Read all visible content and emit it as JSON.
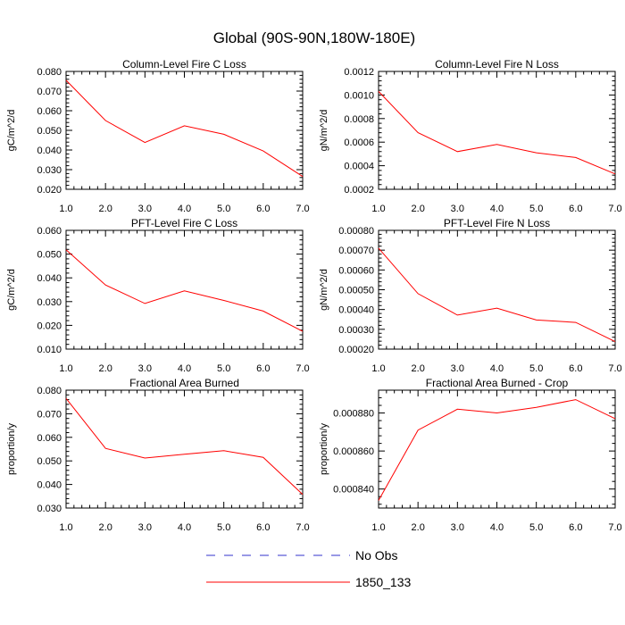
{
  "title": "Global (90S-90N,180W-180E)",
  "chart_data": [
    {
      "type": "line",
      "title": "Column-Level Fire C Loss",
      "ylabel": "gC/m^2/d",
      "x": [
        1,
        2,
        3,
        4,
        5,
        6,
        7
      ],
      "xticks": [
        "1.0",
        "2.0",
        "3.0",
        "4.0",
        "5.0",
        "6.0",
        "7.0"
      ],
      "xlim": [
        1,
        7
      ],
      "ylim": [
        0.02,
        0.08
      ],
      "yticks": [
        0.02,
        0.03,
        0.04,
        0.05,
        0.06,
        0.07,
        0.08
      ],
      "yticklabels": [
        "0.020",
        "0.030",
        "0.040",
        "0.050",
        "0.060",
        "0.070",
        "0.080"
      ],
      "series": [
        {
          "name": "1850_133",
          "values": [
            0.0755,
            0.055,
            0.0438,
            0.0523,
            0.048,
            0.0395,
            0.0265
          ]
        }
      ]
    },
    {
      "type": "line",
      "title": "Column-Level Fire N Loss",
      "ylabel": "gN/m^2/d",
      "x": [
        1,
        2,
        3,
        4,
        5,
        6,
        7
      ],
      "xticks": [
        "1.0",
        "2.0",
        "3.0",
        "4.0",
        "5.0",
        "6.0",
        "7.0"
      ],
      "xlim": [
        1,
        7
      ],
      "ylim": [
        0.0002,
        0.0012
      ],
      "yticks": [
        0.0002,
        0.0004,
        0.0006,
        0.0008,
        0.001,
        0.0012
      ],
      "yticklabels": [
        "0.0002",
        "0.0004",
        "0.0006",
        "0.0008",
        "0.0010",
        "0.0012"
      ],
      "series": [
        {
          "name": "1850_133",
          "values": [
            0.00103,
            0.00068,
            0.00052,
            0.00058,
            0.00051,
            0.00047,
            0.00033
          ]
        }
      ]
    },
    {
      "type": "line",
      "title": "PFT-Level Fire C Loss",
      "ylabel": "gC/m^2/d",
      "x": [
        1,
        2,
        3,
        4,
        5,
        6,
        7
      ],
      "xticks": [
        "1.0",
        "2.0",
        "3.0",
        "4.0",
        "5.0",
        "6.0",
        "7.0"
      ],
      "xlim": [
        1,
        7
      ],
      "ylim": [
        0.01,
        0.06
      ],
      "yticks": [
        0.01,
        0.02,
        0.03,
        0.04,
        0.05,
        0.06
      ],
      "yticklabels": [
        "0.010",
        "0.020",
        "0.030",
        "0.040",
        "0.050",
        "0.060"
      ],
      "series": [
        {
          "name": "1850_133",
          "values": [
            0.0518,
            0.037,
            0.0292,
            0.0345,
            0.0305,
            0.026,
            0.0175
          ]
        }
      ]
    },
    {
      "type": "line",
      "title": "PFT-Level Fire N Loss",
      "ylabel": "gN/m^2/d",
      "x": [
        1,
        2,
        3,
        4,
        5,
        6,
        7
      ],
      "xticks": [
        "1.0",
        "2.0",
        "3.0",
        "4.0",
        "5.0",
        "6.0",
        "7.0"
      ],
      "xlim": [
        1,
        7
      ],
      "ylim": [
        0.0002,
        0.0008
      ],
      "yticks": [
        0.0002,
        0.0003,
        0.0004,
        0.0005,
        0.0006,
        0.0007,
        0.0008
      ],
      "yticklabels": [
        "0.00020",
        "0.00030",
        "0.00040",
        "0.00050",
        "0.00060",
        "0.00070",
        "0.00080"
      ],
      "series": [
        {
          "name": "1850_133",
          "values": [
            0.00071,
            0.00048,
            0.000372,
            0.000407,
            0.000347,
            0.000335,
            0.000238
          ]
        }
      ]
    },
    {
      "type": "line",
      "title": "Fractional Area Burned",
      "ylabel": "proportion/y",
      "x": [
        1,
        2,
        3,
        4,
        5,
        6,
        7
      ],
      "xticks": [
        "1.0",
        "2.0",
        "3.0",
        "4.0",
        "5.0",
        "6.0",
        "7.0"
      ],
      "xlim": [
        1,
        7
      ],
      "ylim": [
        0.03,
        0.08
      ],
      "yticks": [
        0.03,
        0.04,
        0.05,
        0.06,
        0.07,
        0.08
      ],
      "yticklabels": [
        "0.030",
        "0.040",
        "0.050",
        "0.060",
        "0.070",
        "0.080"
      ],
      "series": [
        {
          "name": "1850_133",
          "values": [
            0.0765,
            0.0553,
            0.0512,
            0.0528,
            0.0543,
            0.0515,
            0.0358
          ]
        }
      ]
    },
    {
      "type": "line",
      "title": "Fractional Area Burned - Crop",
      "ylabel": "proportion/y",
      "x": [
        1,
        2,
        3,
        4,
        5,
        6,
        7
      ],
      "xticks": [
        "1.0",
        "2.0",
        "3.0",
        "4.0",
        "5.0",
        "6.0",
        "7.0"
      ],
      "xlim": [
        1,
        7
      ],
      "ylim": [
        0.00083,
        0.000892
      ],
      "yticks": [
        0.00084,
        0.00086,
        0.00088
      ],
      "yticklabels": [
        "0.000840",
        "0.000860",
        "0.000880"
      ],
      "series": [
        {
          "name": "1850_133",
          "values": [
            0.000834,
            0.000871,
            0.000882,
            0.00088,
            0.000883,
            0.000887,
            0.000877
          ]
        }
      ]
    }
  ],
  "legend": [
    {
      "label": "No Obs",
      "color": "#3333cc",
      "style": "dashed"
    },
    {
      "label": "1850_133",
      "color": "#ff0000",
      "style": "solid"
    }
  ]
}
